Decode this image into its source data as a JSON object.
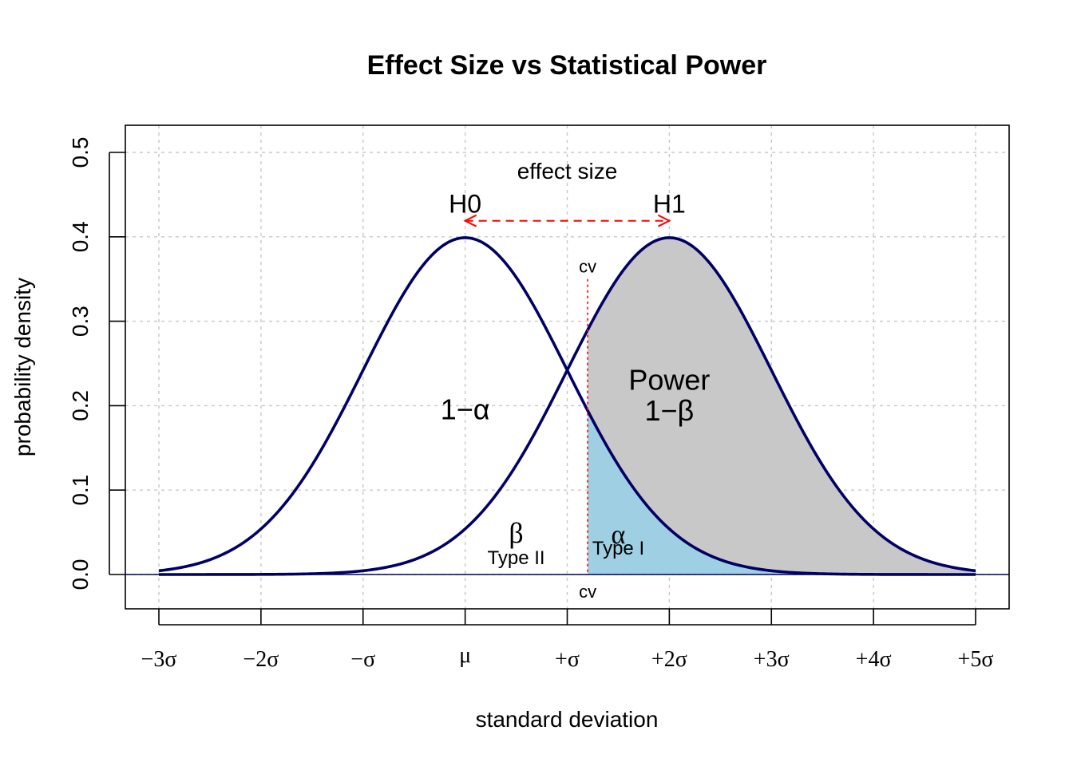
{
  "chart_data": {
    "type": "area",
    "title": "Effect Size vs Statistical Power",
    "xlabel": "standard deviation",
    "ylabel": "probability density",
    "xlim": [
      -3,
      5
    ],
    "ylim": [
      0,
      0.5
    ],
    "grid": true,
    "x_ticks": [
      {
        "value": -3,
        "label": "−3σ"
      },
      {
        "value": -2,
        "label": "−2σ"
      },
      {
        "value": -1,
        "label": "−σ"
      },
      {
        "value": 0,
        "label": "μ"
      },
      {
        "value": 1,
        "label": "+σ"
      },
      {
        "value": 2,
        "label": "+2σ"
      },
      {
        "value": 3,
        "label": "+3σ"
      },
      {
        "value": 4,
        "label": "+4σ"
      },
      {
        "value": 5,
        "label": "+5σ"
      }
    ],
    "y_ticks": [
      {
        "value": 0.0,
        "label": "0.0"
      },
      {
        "value": 0.1,
        "label": "0.1"
      },
      {
        "value": 0.2,
        "label": "0.2"
      },
      {
        "value": 0.3,
        "label": "0.3"
      },
      {
        "value": 0.4,
        "label": "0.4"
      },
      {
        "value": 0.5,
        "label": "0.5"
      }
    ],
    "series": [
      {
        "name": "H0",
        "distribution": "normal",
        "mean": 0,
        "sd": 1,
        "peak_density": 0.399
      },
      {
        "name": "H1",
        "distribution": "normal",
        "mean": 2,
        "sd": 1,
        "peak_density": 0.399
      }
    ],
    "critical_value": 1.2,
    "critical_value_label": "cv",
    "effect_size_label": "effect size",
    "regions": {
      "power": {
        "label": "Power",
        "formula": "1−β",
        "color": "#c8c8c8"
      },
      "alpha": {
        "symbol": "α",
        "label": "Type I",
        "color": "#9ecfe2"
      },
      "beta": {
        "symbol": "β",
        "label": "Type II"
      },
      "one_minus_alpha": {
        "formula": "1−α"
      }
    },
    "colors": {
      "curve": "#000066",
      "effect_arrow": "#ff0000",
      "grid": "#c8c8c8"
    }
  }
}
